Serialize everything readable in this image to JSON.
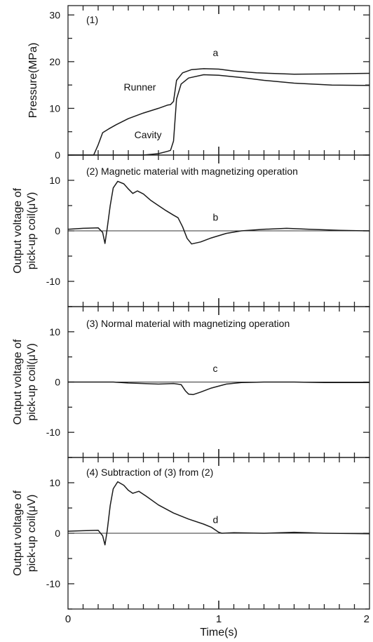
{
  "figure": {
    "xlabel": "Time(s)",
    "xticks": [
      0,
      1,
      2
    ]
  },
  "chart_data": [
    {
      "type": "line",
      "title": "(1)",
      "ylabel": "Pressure(MPa)",
      "xlim": [
        0,
        2
      ],
      "ylim": [
        0,
        32
      ],
      "yticks": [
        0,
        10,
        20,
        30
      ],
      "zero_line": false,
      "annotations": [
        {
          "text": "a",
          "x": 0.97,
          "y": 20.3
        },
        {
          "text": "Runner",
          "x": 0.37,
          "y": 13.8
        },
        {
          "text": "Cavity",
          "x": 0.44,
          "y": 3.6
        }
      ],
      "series": [
        {
          "label": "Runner",
          "points": [
            [
              0,
              0
            ],
            [
              0.17,
              0
            ],
            [
              0.2,
              2.2
            ],
            [
              0.23,
              4.8
            ],
            [
              0.27,
              5.6
            ],
            [
              0.32,
              6.5
            ],
            [
              0.4,
              7.8
            ],
            [
              0.5,
              9.0
            ],
            [
              0.6,
              10.0
            ],
            [
              0.66,
              10.7
            ],
            [
              0.68,
              10.8
            ],
            [
              0.7,
              11.5
            ],
            [
              0.72,
              16
            ],
            [
              0.76,
              17.6
            ],
            [
              0.82,
              18.3
            ],
            [
              0.9,
              18.5
            ],
            [
              1.0,
              18.4
            ],
            [
              1.1,
              18.0
            ],
            [
              1.25,
              17.6
            ],
            [
              1.5,
              17.3
            ],
            [
              1.75,
              17.4
            ],
            [
              2.0,
              17.5
            ]
          ]
        },
        {
          "label": "Cavity",
          "points": [
            [
              0,
              0
            ],
            [
              0.5,
              0
            ],
            [
              0.6,
              0.3
            ],
            [
              0.66,
              0.8
            ],
            [
              0.68,
              1.0
            ],
            [
              0.7,
              3
            ],
            [
              0.72,
              12
            ],
            [
              0.75,
              15.2
            ],
            [
              0.8,
              16.5
            ],
            [
              0.9,
              17.2
            ],
            [
              1.0,
              17.1
            ],
            [
              1.15,
              16.6
            ],
            [
              1.3,
              16.0
            ],
            [
              1.5,
              15.4
            ],
            [
              1.75,
              15.0
            ],
            [
              2.0,
              14.9
            ]
          ]
        }
      ]
    },
    {
      "type": "line",
      "title": "(2) Magnetic material with magnetizing operation",
      "ylabel": "Output voltage of pick-up coil(μV)",
      "xlim": [
        0,
        2
      ],
      "ylim": [
        -15,
        15
      ],
      "yticks": [
        -10,
        0,
        10
      ],
      "zero_line": true,
      "annotations": [
        {
          "text": "b",
          "x": 0.97,
          "y": 1.2
        }
      ],
      "series": [
        {
          "label": "b",
          "points": [
            [
              0,
              0.3
            ],
            [
              0.1,
              0.5
            ],
            [
              0.2,
              0.6
            ],
            [
              0.23,
              -0.3
            ],
            [
              0.245,
              -2.5
            ],
            [
              0.26,
              0.5
            ],
            [
              0.28,
              5
            ],
            [
              0.3,
              8.5
            ],
            [
              0.33,
              9.8
            ],
            [
              0.37,
              9.3
            ],
            [
              0.4,
              8.3
            ],
            [
              0.43,
              7.4
            ],
            [
              0.46,
              7.9
            ],
            [
              0.5,
              7.3
            ],
            [
              0.55,
              6.0
            ],
            [
              0.6,
              5.0
            ],
            [
              0.65,
              4.0
            ],
            [
              0.7,
              3.1
            ],
            [
              0.73,
              2.6
            ],
            [
              0.76,
              0.8
            ],
            [
              0.79,
              -1.5
            ],
            [
              0.82,
              -2.6
            ],
            [
              0.88,
              -2.2
            ],
            [
              0.95,
              -1.4
            ],
            [
              1.05,
              -0.5
            ],
            [
              1.15,
              0
            ],
            [
              1.3,
              0.3
            ],
            [
              1.45,
              0.5
            ],
            [
              1.6,
              0.3
            ],
            [
              1.8,
              0.1
            ],
            [
              2.0,
              0
            ]
          ]
        }
      ]
    },
    {
      "type": "line",
      "title": "(3) Normal material with magnetizing operation",
      "ylabel": "Output voltage of pick-up coil(μV)",
      "xlim": [
        0,
        2
      ],
      "ylim": [
        -15,
        15
      ],
      "yticks": [
        -10,
        0,
        10
      ],
      "zero_line": true,
      "annotations": [
        {
          "text": "c",
          "x": 0.97,
          "y": 1.2
        }
      ],
      "series": [
        {
          "label": "c",
          "points": [
            [
              0,
              0
            ],
            [
              0.3,
              0
            ],
            [
              0.4,
              -0.2
            ],
            [
              0.5,
              -0.3
            ],
            [
              0.6,
              -0.4
            ],
            [
              0.7,
              -0.3
            ],
            [
              0.75,
              -0.5
            ],
            [
              0.78,
              -1.8
            ],
            [
              0.8,
              -2.4
            ],
            [
              0.83,
              -2.5
            ],
            [
              0.88,
              -2.0
            ],
            [
              0.95,
              -1.2
            ],
            [
              1.05,
              -0.4
            ],
            [
              1.15,
              -0.1
            ],
            [
              1.3,
              0
            ],
            [
              1.5,
              0
            ],
            [
              1.7,
              -0.1
            ],
            [
              2.0,
              -0.1
            ]
          ]
        }
      ]
    },
    {
      "type": "line",
      "title": "(4) Subtraction of (3) from (2)",
      "ylabel": "Output voltage of pick-up coil(μV)",
      "xlim": [
        0,
        2
      ],
      "ylim": [
        -15,
        15
      ],
      "yticks": [
        -10,
        0,
        10
      ],
      "zero_line": true,
      "annotations": [
        {
          "text": "d",
          "x": 0.97,
          "y": 1.2
        }
      ],
      "series": [
        {
          "label": "d",
          "points": [
            [
              0,
              0.4
            ],
            [
              0.1,
              0.5
            ],
            [
              0.2,
              0.6
            ],
            [
              0.23,
              -0.5
            ],
            [
              0.245,
              -2.3
            ],
            [
              0.26,
              0.5
            ],
            [
              0.28,
              5.5
            ],
            [
              0.3,
              8.8
            ],
            [
              0.33,
              10.2
            ],
            [
              0.37,
              9.5
            ],
            [
              0.4,
              8.5
            ],
            [
              0.43,
              7.9
            ],
            [
              0.47,
              8.3
            ],
            [
              0.52,
              7.3
            ],
            [
              0.6,
              5.6
            ],
            [
              0.7,
              4.0
            ],
            [
              0.8,
              2.8
            ],
            [
              0.9,
              1.8
            ],
            [
              0.95,
              1.2
            ],
            [
              1.0,
              0.2
            ],
            [
              1.02,
              0
            ],
            [
              1.1,
              0.1
            ],
            [
              1.3,
              0
            ],
            [
              1.5,
              0.2
            ],
            [
              1.7,
              0
            ],
            [
              2.0,
              -0.1
            ]
          ]
        }
      ]
    }
  ]
}
